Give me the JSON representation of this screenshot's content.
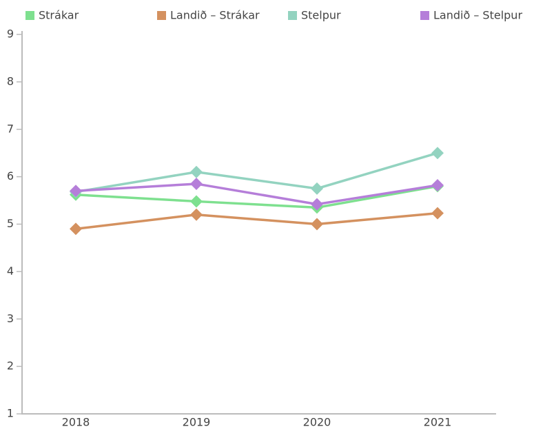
{
  "chart_data": {
    "type": "line",
    "categories": [
      "2018",
      "2019",
      "2020",
      "2021"
    ],
    "series": [
      {
        "name": "Strákar",
        "color": "#7ee08f",
        "values": [
          5.62,
          5.48,
          5.35,
          5.8
        ]
      },
      {
        "name": "Landið – Strákar",
        "color": "#d4915f",
        "values": [
          4.9,
          5.2,
          5.0,
          5.23
        ]
      },
      {
        "name": "Stelpur",
        "color": "#93d3c0",
        "values": [
          5.68,
          6.1,
          5.75,
          6.5
        ]
      },
      {
        "name": "Landið – Stelpur",
        "color": "#b57ed9",
        "values": [
          5.7,
          5.85,
          5.42,
          5.82
        ]
      }
    ],
    "ylim": [
      1,
      9
    ],
    "yticks": [
      1,
      2,
      3,
      4,
      5,
      6,
      7,
      8,
      9
    ],
    "grid": false
  }
}
